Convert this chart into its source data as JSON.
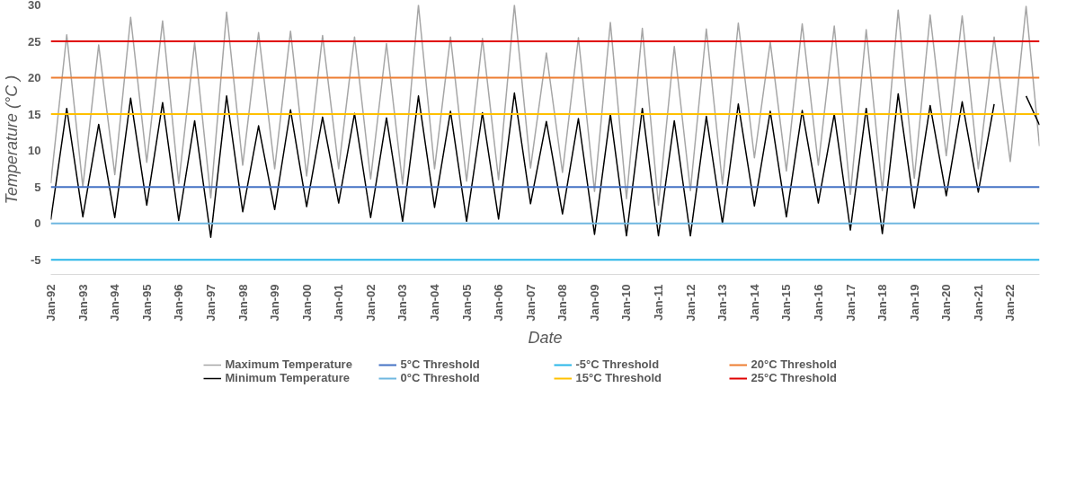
{
  "chart_data": {
    "type": "line",
    "xlabel": "Date",
    "ylabel": "Temperature (°C )",
    "x": [
      "1992-01",
      "1992-07",
      "1993-01",
      "1993-07",
      "1994-01",
      "1994-07",
      "1995-01",
      "1995-07",
      "1996-01",
      "1996-07",
      "1997-01",
      "1997-07",
      "1998-01",
      "1998-07",
      "1999-01",
      "1999-07",
      "2000-01",
      "2000-07",
      "2001-01",
      "2001-07",
      "2002-01",
      "2002-07",
      "2003-01",
      "2003-07",
      "2004-01",
      "2004-07",
      "2005-01",
      "2005-07",
      "2006-01",
      "2006-07",
      "2007-01",
      "2007-07",
      "2008-01",
      "2008-07",
      "2009-01",
      "2009-07",
      "2010-01",
      "2010-07",
      "2011-01",
      "2011-07",
      "2012-01",
      "2012-07",
      "2013-01",
      "2013-07",
      "2014-01",
      "2014-07",
      "2015-01",
      "2015-07",
      "2016-01",
      "2016-07",
      "2017-01",
      "2017-07",
      "2018-01",
      "2018-07",
      "2019-01",
      "2019-07",
      "2020-01",
      "2020-07",
      "2021-01",
      "2021-07",
      "2022-01",
      "2022-07",
      "2022-12"
    ],
    "series": [
      {
        "name": "Maximum Temperature",
        "color": "#a6a6a6",
        "values": [
          5.5,
          25.9,
          5.0,
          24.5,
          6.7,
          28.3,
          8.4,
          27.8,
          5.5,
          24.8,
          3.5,
          29.0,
          8.0,
          26.2,
          7.5,
          26.4,
          6.5,
          25.8,
          7.5,
          25.6,
          6.1,
          24.7,
          5.4,
          30.0,
          7.5,
          25.6,
          5.8,
          25.4,
          6.0,
          30.0,
          7.6,
          23.4,
          7.0,
          25.5,
          4.4,
          27.6,
          3.4,
          26.8,
          2.5,
          24.3,
          4.5,
          26.7,
          5.4,
          27.5,
          9.0,
          24.9,
          7.2,
          27.4,
          8.0,
          27.1,
          4.0,
          26.6,
          4.5,
          29.3,
          6.2,
          28.6,
          9.3,
          28.5,
          7.5,
          25.6,
          8.5,
          29.8,
          10.6
        ]
      },
      {
        "name": "Minimum Temperature",
        "color": "#000000",
        "values": [
          0.5,
          15.8,
          0.9,
          13.6,
          0.8,
          17.2,
          2.5,
          16.6,
          0.4,
          14.1,
          -1.9,
          17.5,
          1.6,
          13.4,
          1.9,
          15.6,
          2.3,
          14.6,
          2.8,
          15.1,
          0.8,
          14.5,
          0.3,
          17.5,
          2.2,
          15.4,
          0.3,
          15.2,
          0.6,
          17.9,
          2.7,
          14.0,
          1.3,
          14.4,
          -1.5,
          15.0,
          -1.7,
          15.8,
          -1.7,
          14.1,
          -1.7,
          14.7,
          0.0,
          16.4,
          2.4,
          15.4,
          0.9,
          15.5,
          2.8,
          15.0,
          -0.9,
          15.8,
          -1.4,
          17.8,
          2.1,
          16.2,
          3.8,
          16.7,
          4.3,
          16.4,
          null,
          17.5,
          13.5
        ]
      }
    ],
    "ref_lines": [
      {
        "axis": "y",
        "value": 5,
        "label": "5°C Threshold",
        "color": "#4472c4"
      },
      {
        "axis": "y",
        "value": 0,
        "label": "0°C Threshold",
        "color": "#6fb7e0"
      },
      {
        "axis": "y",
        "value": -5,
        "label": "-5°C Threshold",
        "color": "#29b6e8"
      },
      {
        "axis": "y",
        "value": 15,
        "label": "15°C Threshold",
        "color": "#ffc000"
      },
      {
        "axis": "y",
        "value": 20,
        "label": "20°C Threshold",
        "color": "#ed7d31"
      },
      {
        "axis": "y",
        "value": 25,
        "label": "25°C Threshold",
        "color": "#e00000"
      }
    ],
    "xlim": [
      "1992-01",
      "2022-12"
    ],
    "xticks": [
      {
        "value": "1992-01",
        "label": "Jan-92"
      },
      {
        "value": "1993-01",
        "label": "Jan-93"
      },
      {
        "value": "1994-01",
        "label": "Jan-94"
      },
      {
        "value": "1995-01",
        "label": "Jan-95"
      },
      {
        "value": "1996-01",
        "label": "Jan-96"
      },
      {
        "value": "1997-01",
        "label": "Jan-97"
      },
      {
        "value": "1998-01",
        "label": "Jan-98"
      },
      {
        "value": "1999-01",
        "label": "Jan-99"
      },
      {
        "value": "2000-01",
        "label": "Jan-00"
      },
      {
        "value": "2001-01",
        "label": "Jan-01"
      },
      {
        "value": "2002-01",
        "label": "Jan-02"
      },
      {
        "value": "2003-01",
        "label": "Jan-03"
      },
      {
        "value": "2004-01",
        "label": "Jan-04"
      },
      {
        "value": "2005-01",
        "label": "Jan-05"
      },
      {
        "value": "2006-01",
        "label": "Jan-06"
      },
      {
        "value": "2007-01",
        "label": "Jan-07"
      },
      {
        "value": "2008-01",
        "label": "Jan-08"
      },
      {
        "value": "2009-01",
        "label": "Jan-09"
      },
      {
        "value": "2010-01",
        "label": "Jan-10"
      },
      {
        "value": "2011-01",
        "label": "Jan-11"
      },
      {
        "value": "2012-01",
        "label": "Jan-12"
      },
      {
        "value": "2013-01",
        "label": "Jan-13"
      },
      {
        "value": "2014-01",
        "label": "Jan-14"
      },
      {
        "value": "2015-01",
        "label": "Jan-15"
      },
      {
        "value": "2016-01",
        "label": "Jan-16"
      },
      {
        "value": "2017-01",
        "label": "Jan-17"
      },
      {
        "value": "2018-01",
        "label": "Jan-18"
      },
      {
        "value": "2019-01",
        "label": "Jan-19"
      },
      {
        "value": "2020-01",
        "label": "Jan-20"
      },
      {
        "value": "2021-01",
        "label": "Jan-21"
      },
      {
        "value": "2022-01",
        "label": "Jan-22"
      }
    ],
    "ylim": [
      -7,
      30
    ],
    "yticks": [
      -5,
      0,
      5,
      10,
      15,
      20,
      25,
      30
    ],
    "grid": false,
    "legend": "bottom",
    "marker": "none",
    "line_style": "solid"
  }
}
